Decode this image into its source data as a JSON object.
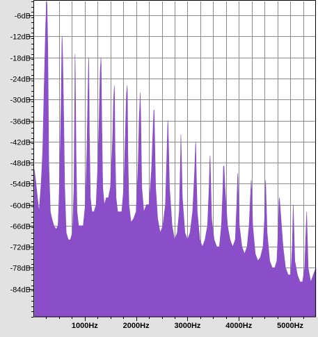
{
  "colors": {
    "background": "#ffffff",
    "ruler_background": "#e2e2e2",
    "grid": "#8c8c8c",
    "spectrum_fill": "#8a4fc8",
    "plot_border": "#000000"
  },
  "chart_data": {
    "type": "area",
    "title": "",
    "xlabel": "",
    "ylabel": "",
    "x_scale": "linear",
    "y_scale": "linear",
    "grid": true,
    "xlim": [
      0,
      5500
    ],
    "ylim": [
      -92,
      -2
    ],
    "y_ticks": [
      {
        "value": -6,
        "label": "-6dB"
      },
      {
        "value": -12,
        "label": "-12dB"
      },
      {
        "value": -18,
        "label": "-18dB"
      },
      {
        "value": -24,
        "label": "-24dB"
      },
      {
        "value": -30,
        "label": "-30dB"
      },
      {
        "value": -36,
        "label": "-36dB"
      },
      {
        "value": -42,
        "label": "-42dB"
      },
      {
        "value": -48,
        "label": "-48dB"
      },
      {
        "value": -54,
        "label": "-54dB"
      },
      {
        "value": -60,
        "label": "-60dB"
      },
      {
        "value": -66,
        "label": "-66dB"
      },
      {
        "value": -72,
        "label": "-72dB"
      },
      {
        "value": -78,
        "label": "-78dB"
      },
      {
        "value": -84,
        "label": "-84dB"
      }
    ],
    "x_ticks": [
      {
        "value": 1000,
        "label": "1000Hz"
      },
      {
        "value": 2000,
        "label": "2000Hz"
      },
      {
        "value": 3000,
        "label": "3000Hz"
      },
      {
        "value": 4000,
        "label": "4000Hz"
      },
      {
        "value": 5000,
        "label": "5000Hz"
      }
    ],
    "series": [
      {
        "color": "#8a4fc8",
        "x": [
          20,
          80,
          110,
          150,
          180,
          200,
          220,
          240,
          260,
          265,
          270,
          280,
          290,
          300,
          330,
          360,
          400,
          440,
          480,
          500,
          520,
          540,
          555,
          560,
          570,
          590,
          610,
          640,
          680,
          720,
          760,
          790,
          805,
          810,
          815,
          830,
          850,
          880,
          920,
          970,
          1010,
          1040,
          1060,
          1075,
          1080,
          1090,
          1110,
          1140,
          1180,
          1220,
          1250,
          1280,
          1300,
          1315,
          1320,
          1330,
          1350,
          1380,
          1420,
          1460,
          1500,
          1540,
          1560,
          1575,
          1580,
          1590,
          1610,
          1640,
          1680,
          1720,
          1760,
          1790,
          1810,
          1825,
          1830,
          1840,
          1860,
          1900,
          1950,
          2000,
          2040,
          2060,
          2075,
          2080,
          2090,
          2110,
          2150,
          2200,
          2250,
          2300,
          2330,
          2345,
          2350,
          2360,
          2380,
          2420,
          2470,
          2520,
          2570,
          2600,
          2615,
          2620,
          2630,
          2650,
          2700,
          2750,
          2800,
          2840,
          2865,
          2870,
          2880,
          2900,
          2950,
          3000,
          3050,
          3100,
          3140,
          3155,
          3160,
          3170,
          3190,
          3240,
          3290,
          3340,
          3390,
          3420,
          3435,
          3440,
          3450,
          3470,
          3520,
          3570,
          3620,
          3660,
          3690,
          3700,
          3710,
          3730,
          3780,
          3830,
          3880,
          3930,
          3960,
          3975,
          3980,
          3990,
          4010,
          4060,
          4110,
          4160,
          4200,
          4230,
          4240,
          4250,
          4270,
          4320,
          4370,
          4420,
          4470,
          4500,
          4515,
          4520,
          4530,
          4550,
          4600,
          4650,
          4700,
          4740,
          4770,
          4780,
          4790,
          4810,
          4860,
          4910,
          4960,
          5010,
          5040,
          5055,
          5060,
          5070,
          5090,
          5140,
          5190,
          5240,
          5280,
          5310,
          5320,
          5330,
          5350,
          5400,
          5450,
          5500
        ],
        "y": [
          -50,
          -58,
          -62,
          -54,
          -45,
          -32,
          -20,
          -8,
          -2,
          -3,
          -6,
          -15,
          -30,
          -48,
          -62,
          -64,
          -66,
          -67,
          -66,
          -58,
          -45,
          -30,
          -13,
          -12,
          -18,
          -35,
          -55,
          -68,
          -70,
          -70,
          -68,
          -55,
          -30,
          -17,
          -22,
          -45,
          -62,
          -66,
          -66,
          -66,
          -60,
          -45,
          -30,
          -18,
          -20,
          -40,
          -58,
          -62,
          -62,
          -60,
          -50,
          -35,
          -22,
          -18,
          -20,
          -35,
          -55,
          -60,
          -58,
          -58,
          -55,
          -42,
          -30,
          -26,
          -28,
          -45,
          -58,
          -62,
          -62,
          -62,
          -55,
          -40,
          -29,
          -26,
          -28,
          -45,
          -60,
          -65,
          -64,
          -62,
          -48,
          -35,
          -30,
          -28,
          -35,
          -55,
          -62,
          -60,
          -60,
          -50,
          -38,
          -33,
          -33,
          -40,
          -55,
          -64,
          -68,
          -66,
          -60,
          -45,
          -37,
          -36,
          -42,
          -55,
          -66,
          -70,
          -68,
          -62,
          -46,
          -40,
          -45,
          -58,
          -68,
          -70,
          -68,
          -62,
          -50,
          -43,
          -42,
          -50,
          -62,
          -70,
          -72,
          -70,
          -66,
          -55,
          -47,
          -46,
          -52,
          -64,
          -70,
          -72,
          -72,
          -66,
          -55,
          -49,
          -49,
          -55,
          -66,
          -70,
          -72,
          -70,
          -60,
          -52,
          -51,
          -56,
          -66,
          -72,
          -74,
          -72,
          -66,
          -56,
          -53,
          -56,
          -66,
          -74,
          -76,
          -75,
          -72,
          -64,
          -55,
          -53,
          -58,
          -68,
          -76,
          -78,
          -78,
          -76,
          -66,
          -59,
          -58,
          -62,
          -72,
          -78,
          -80,
          -80,
          -72,
          -62,
          -60,
          -66,
          -76,
          -80,
          -82,
          -82,
          -78,
          -66,
          -62,
          -68,
          -78,
          -82,
          -80,
          -78
        ]
      }
    ]
  }
}
